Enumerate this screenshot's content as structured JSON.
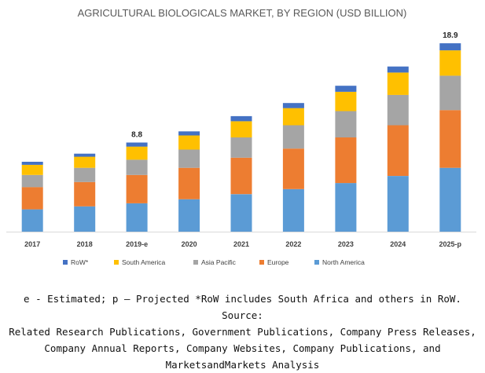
{
  "chart_data": {
    "type": "bar",
    "stacked": true,
    "title": "AGRICULTURAL BIOLOGICALS MARKET, BY REGION (USD BILLION)",
    "xlabel": "",
    "ylabel": "",
    "ylim": [
      0,
      20
    ],
    "categories": [
      "2017",
      "2018",
      "2019-e",
      "2020",
      "2021",
      "2022",
      "2023",
      "2024",
      "2025-p"
    ],
    "series": [
      {
        "name": "North America",
        "color": "#5B9BD5",
        "values": [
          2.2,
          2.5,
          2.8,
          3.2,
          3.7,
          4.2,
          4.8,
          5.5,
          6.3
        ]
      },
      {
        "name": "Europe",
        "color": "#ED7D31",
        "values": [
          2.2,
          2.4,
          2.8,
          3.1,
          3.6,
          4.0,
          4.5,
          5.0,
          5.7
        ]
      },
      {
        "name": "Asia Pacific",
        "color": "#A5A5A5",
        "values": [
          1.2,
          1.4,
          1.5,
          1.8,
          2.0,
          2.3,
          2.6,
          3.0,
          3.4
        ]
      },
      {
        "name": "South America",
        "color": "#FFC000",
        "values": [
          1.0,
          1.1,
          1.3,
          1.4,
          1.6,
          1.7,
          1.9,
          2.2,
          2.5
        ]
      },
      {
        "name": "RoW*",
        "color": "#4472C4",
        "values": [
          0.3,
          0.3,
          0.4,
          0.4,
          0.5,
          0.5,
          0.6,
          0.6,
          0.7
        ]
      }
    ],
    "data_labels": [
      {
        "category": "2019-e",
        "text": "8.8"
      },
      {
        "category": "2025-p",
        "text": "18.9"
      }
    ],
    "legend_order": [
      "RoW*",
      "South America",
      "Asia Pacific",
      "Europe",
      "North America"
    ],
    "legend_position": "bottom",
    "grid": false
  },
  "source_lines": [
    "e - Estimated; p – Projected *RoW includes South Africa and others in RoW. Source:",
    "Related Research Publications, Government Publications, Company Press Releases,",
    "Company Annual Reports, Company Websites, Company Publications, and",
    "MarketsandMarkets Analysis"
  ]
}
